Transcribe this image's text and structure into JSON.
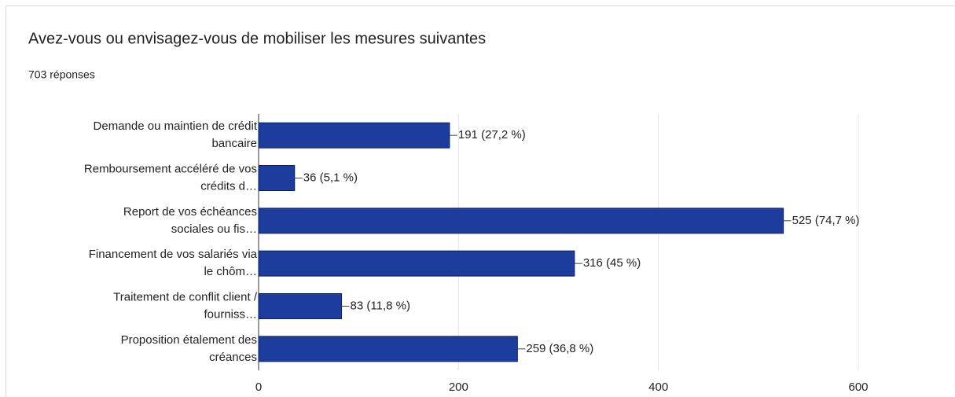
{
  "chart_data": {
    "type": "bar",
    "orientation": "horizontal",
    "title": "Avez-vous ou envisagez-vous de mobiliser les mesures suivantes",
    "subtitle": "703 réponses",
    "categories": [
      [
        "Demande ou maintien de crédit",
        "bancaire"
      ],
      [
        "Remboursement accéléré de vos",
        "crédits d…"
      ],
      [
        "Report de vos échéances",
        "sociales ou fis…"
      ],
      [
        "Financement de vos salariés via",
        "le chôm…"
      ],
      [
        "Traitement de conflit client /",
        "fourniss…"
      ],
      [
        "Proposition étalement des",
        "créances"
      ]
    ],
    "values": [
      191,
      36,
      525,
      316,
      83,
      259
    ],
    "value_labels": [
      "191 (27,2 %)",
      "36 (5,1 %)",
      "525 (74,7 %)",
      "316 (45 %)",
      "83 (11,8 %)",
      "259 (36,8 %)"
    ],
    "color": "#1c3d9c",
    "xlim": [
      0,
      600
    ],
    "xticks": [
      0,
      200,
      400,
      600
    ],
    "grid": true
  }
}
